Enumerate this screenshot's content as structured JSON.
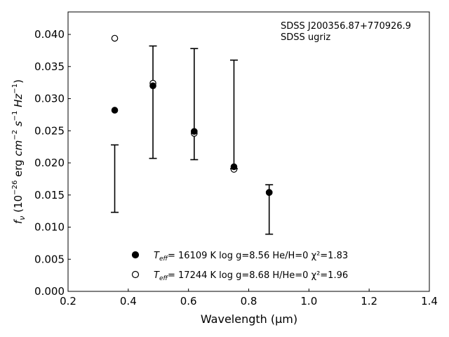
{
  "chart_data": {
    "type": "scatter",
    "xlabel": "Wavelength (μm)",
    "ylabel": "f_ν (10^-26 erg cm^-2 s^-1 Hz^-1)",
    "xlim": [
      0.2,
      1.4
    ],
    "ylim": [
      0.0,
      0.0435
    ],
    "x_ticks": [
      "0.2",
      "0.4",
      "0.6",
      "0.8",
      "1.0",
      "1.2",
      "1.4"
    ],
    "y_ticks": [
      "0.000",
      "0.005",
      "0.010",
      "0.015",
      "0.020",
      "0.025",
      "0.030",
      "0.035",
      "0.040"
    ],
    "annotation": [
      "SDSS J200356.87+770926.9",
      "SDSS ugriz"
    ],
    "observed": {
      "x": [
        0.355,
        0.482,
        0.619,
        0.751,
        0.868
      ],
      "low": [
        0.0123,
        0.0207,
        0.0205,
        0.0191,
        0.0089
      ],
      "high": [
        0.0228,
        0.0382,
        0.0378,
        0.036,
        0.0166
      ]
    },
    "series": [
      {
        "name": "= 16109 K  log g=8.56  He/H=0  χ²=1.83",
        "marker": "filled",
        "x": [
          0.355,
          0.482,
          0.619,
          0.751,
          0.868
        ],
        "values": [
          0.0282,
          0.032,
          0.0249,
          0.0194,
          0.0154
        ]
      },
      {
        "name": "= 17244 K  log g=8.68  H/He=0  χ²=1.96",
        "marker": "open",
        "x": [
          0.355,
          0.482,
          0.619,
          0.751,
          0.868
        ],
        "values": [
          0.0394,
          0.0324,
          0.0246,
          0.019,
          0.0154
        ]
      }
    ],
    "legend_placement": "bottom-center"
  }
}
